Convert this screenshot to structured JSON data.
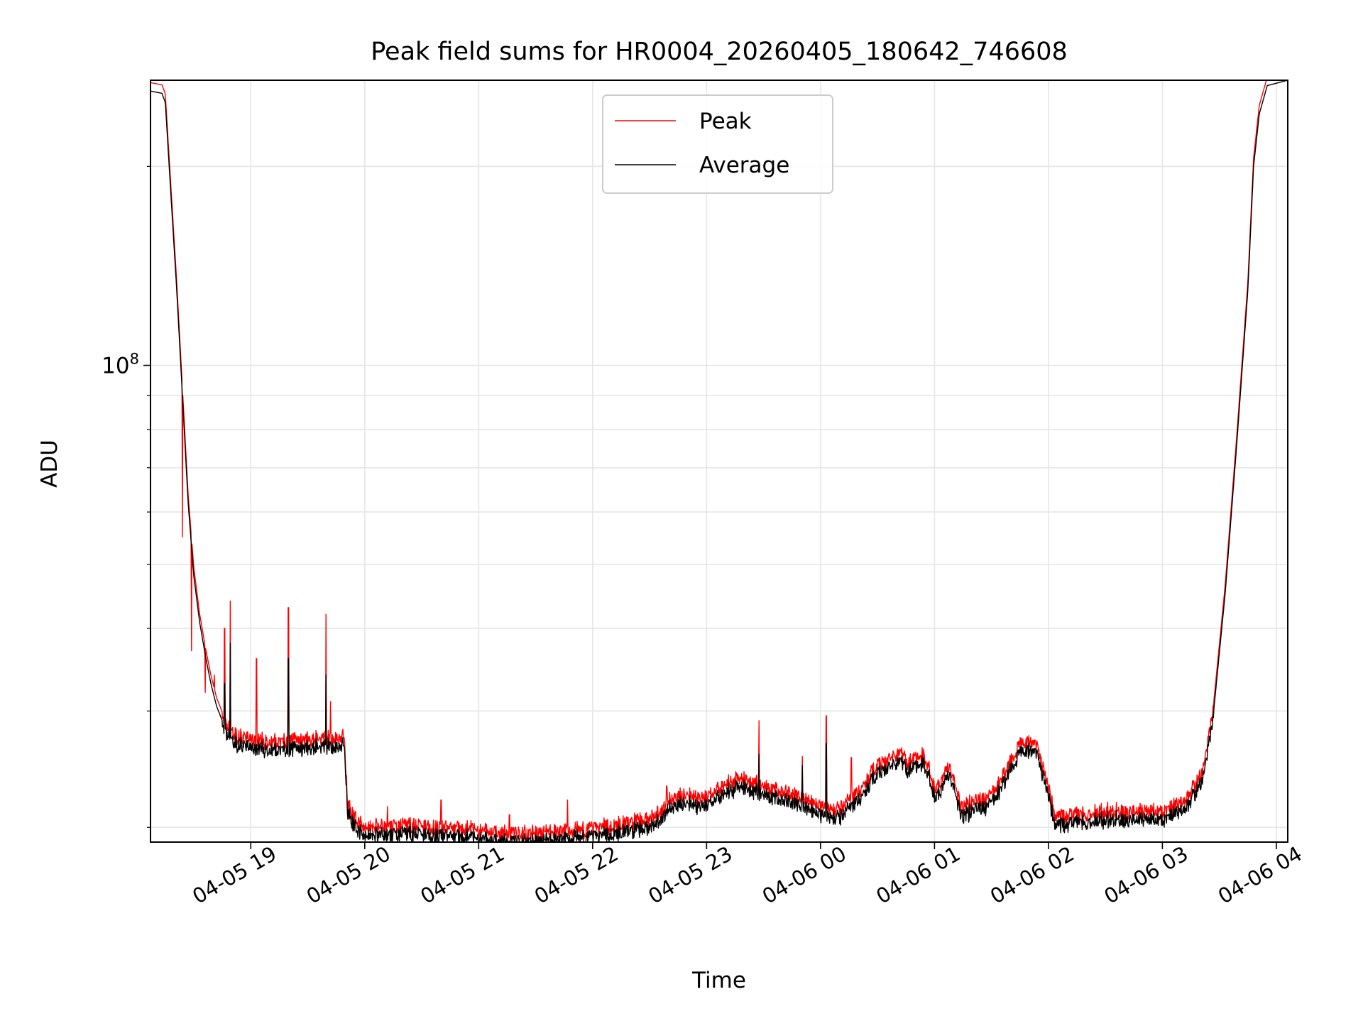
{
  "chart_data": {
    "type": "line",
    "title": "Peak field sums for HR0004_20260405_180642_746608",
    "xlabel": "Time",
    "ylabel": "ADU",
    "yscale": "log",
    "ylim": [
      19000000,
      270000000
    ],
    "xlim": [
      18.12,
      28.1
    ],
    "x_units": "hours since 04-05 00:00",
    "grid": true,
    "legend_position": "top-center",
    "y_major_ticks": [
      {
        "value": 100000000,
        "base": "10",
        "exp": "8"
      }
    ],
    "y_minor_ticks": [
      20000000,
      30000000,
      40000000,
      50000000,
      60000000,
      70000000,
      80000000,
      90000000,
      200000000
    ],
    "x_ticks": [
      {
        "value": 19,
        "label": "04-05 19"
      },
      {
        "value": 20,
        "label": "04-05 20"
      },
      {
        "value": 21,
        "label": "04-05 21"
      },
      {
        "value": 22,
        "label": "04-05 22"
      },
      {
        "value": 23,
        "label": "04-05 23"
      },
      {
        "value": 24,
        "label": "04-06 00"
      },
      {
        "value": 25,
        "label": "04-06 01"
      },
      {
        "value": 26,
        "label": "04-06 02"
      },
      {
        "value": 27,
        "label": "04-06 03"
      },
      {
        "value": 28,
        "label": "04-06 04"
      }
    ],
    "series": [
      {
        "name": "Peak",
        "color": "#ff0000",
        "baseline_offset": 1.03,
        "spikes": [
          [
            18.4,
            55000000
          ],
          [
            18.48,
            37000000
          ],
          [
            18.6,
            32000000
          ],
          [
            18.68,
            34000000
          ],
          [
            18.77,
            40000000
          ],
          [
            18.82,
            44000000
          ],
          [
            19.05,
            36000000
          ],
          [
            19.33,
            43000000
          ],
          [
            19.66,
            42000000
          ],
          [
            19.7,
            31000000
          ],
          [
            20.13,
            20000000
          ],
          [
            20.2,
            21500000
          ],
          [
            20.67,
            22000000
          ],
          [
            21.04,
            19800000
          ],
          [
            21.27,
            20900000
          ],
          [
            21.78,
            22000000
          ],
          [
            21.84,
            19500000
          ],
          [
            22.65,
            23100000
          ],
          [
            23.46,
            29000000
          ],
          [
            23.84,
            25600000
          ],
          [
            24.05,
            29500000
          ],
          [
            24.27,
            25500000
          ],
          [
            26.27,
            20200000
          ],
          [
            27.02,
            21600000
          ]
        ]
      },
      {
        "name": "Average",
        "color": "#000000",
        "baseline_offset": 1.0,
        "spikes": [
          [
            18.77,
            33000000
          ],
          [
            18.82,
            38000000
          ],
          [
            19.33,
            36000000
          ],
          [
            19.66,
            34000000
          ],
          [
            23.46,
            25800000
          ],
          [
            23.84,
            24800000
          ],
          [
            24.05,
            26800000
          ]
        ]
      }
    ],
    "baseline": [
      [
        18.12,
        260000000
      ],
      [
        18.22,
        258000000
      ],
      [
        18.25,
        250000000
      ],
      [
        18.3,
        180000000
      ],
      [
        18.35,
        130000000
      ],
      [
        18.4,
        90000000
      ],
      [
        18.45,
        62000000
      ],
      [
        18.5,
        48000000
      ],
      [
        18.55,
        41000000
      ],
      [
        18.6,
        36500000
      ],
      [
        18.65,
        33000000
      ],
      [
        18.7,
        30500000
      ],
      [
        18.75,
        29000000
      ],
      [
        18.85,
        27300000
      ],
      [
        19.0,
        26800000
      ],
      [
        19.2,
        26600000
      ],
      [
        19.4,
        26800000
      ],
      [
        19.6,
        26900000
      ],
      [
        19.78,
        27100000
      ],
      [
        19.82,
        27300000
      ],
      [
        19.85,
        21500000
      ],
      [
        19.9,
        20500000
      ],
      [
        20.0,
        19800000
      ],
      [
        20.5,
        19900000
      ],
      [
        20.8,
        19700000
      ],
      [
        21.0,
        19600000
      ],
      [
        21.2,
        19400000
      ],
      [
        21.4,
        19300000
      ],
      [
        21.7,
        19500000
      ],
      [
        22.0,
        19700000
      ],
      [
        22.3,
        20100000
      ],
      [
        22.5,
        20400000
      ],
      [
        22.6,
        21000000
      ],
      [
        22.7,
        21900000
      ],
      [
        22.8,
        22200000
      ],
      [
        22.95,
        21800000
      ],
      [
        23.1,
        22600000
      ],
      [
        23.3,
        23500000
      ],
      [
        23.4,
        23100000
      ],
      [
        23.6,
        22500000
      ],
      [
        23.8,
        22100000
      ],
      [
        24.0,
        21300000
      ],
      [
        24.1,
        20900000
      ],
      [
        24.2,
        21300000
      ],
      [
        24.35,
        22400000
      ],
      [
        24.45,
        24000000
      ],
      [
        24.6,
        25200000
      ],
      [
        24.7,
        25500000
      ],
      [
        24.75,
        24900000
      ],
      [
        24.9,
        25400000
      ],
      [
        24.95,
        24200000
      ],
      [
        25.0,
        22700000
      ],
      [
        25.05,
        23000000
      ],
      [
        25.1,
        24400000
      ],
      [
        25.15,
        24100000
      ],
      [
        25.2,
        22000000
      ],
      [
        25.25,
        21100000
      ],
      [
        25.35,
        21700000
      ],
      [
        25.45,
        21800000
      ],
      [
        25.55,
        22800000
      ],
      [
        25.65,
        24500000
      ],
      [
        25.75,
        26500000
      ],
      [
        25.9,
        26400000
      ],
      [
        26.0,
        22600000
      ],
      [
        26.05,
        20900000
      ],
      [
        26.1,
        20500000
      ],
      [
        26.3,
        20700000
      ],
      [
        26.5,
        20900000
      ],
      [
        26.8,
        20900000
      ],
      [
        27.0,
        21000000
      ],
      [
        27.15,
        21400000
      ],
      [
        27.25,
        22300000
      ],
      [
        27.35,
        24000000
      ],
      [
        27.45,
        30000000
      ],
      [
        27.55,
        45000000
      ],
      [
        27.65,
        75000000
      ],
      [
        27.75,
        130000000
      ],
      [
        27.8,
        200000000
      ],
      [
        27.85,
        240000000
      ],
      [
        27.92,
        265000000
      ],
      [
        28.1,
        270000000
      ]
    ]
  }
}
